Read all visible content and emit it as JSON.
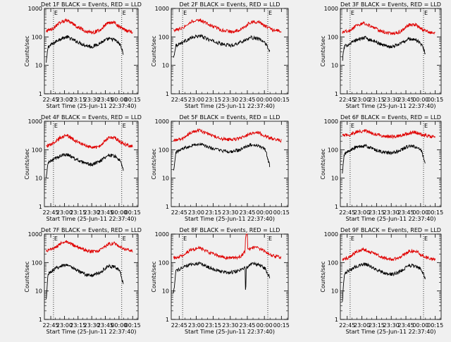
{
  "colors": {
    "background": "#f0f0f0",
    "events": "#000000",
    "lld": "#e00000",
    "axes": "#000000"
  },
  "chart_data": [
    {
      "type": "line",
      "title": "Det 1F BLACK = Events, RED = LLD",
      "xlabel": "Start Time (25-Jun-11 22:37:40)",
      "ylabel": "Counts/sec",
      "yscale": "log",
      "ylim": [
        1,
        1000
      ],
      "xlim": [
        -5,
        98
      ],
      "xunit": "minutes after 22:43",
      "xticks": [
        "22:45",
        "23:00",
        "23:15",
        "23:30",
        "23:45",
        "00:00",
        "00:15"
      ],
      "yticks": [
        "1",
        "10",
        "100",
        "1000"
      ],
      "markers": [
        {
          "x": 5,
          "label": "E"
        },
        {
          "x": 80,
          "label": "E"
        }
      ],
      "series": [
        {
          "name": "Events",
          "x": [
            -3,
            -1,
            5,
            12,
            20,
            30,
            40,
            48,
            56,
            65,
            72,
            78,
            82
          ],
          "y": [
            12,
            45,
            60,
            85,
            100,
            70,
            50,
            45,
            60,
            85,
            80,
            55,
            25
          ]
        },
        {
          "name": "LLD",
          "x": [
            -3,
            5,
            12,
            20,
            30,
            40,
            48,
            56,
            65,
            72,
            78,
            85,
            92
          ],
          "y": [
            160,
            200,
            330,
            380,
            240,
            160,
            140,
            170,
            320,
            320,
            220,
            165,
            150
          ]
        }
      ]
    },
    {
      "type": "line",
      "title": "Det 2F BLACK = Events, RED = LLD",
      "xlabel": "Start Time (25-Jun-11 22:37:40)",
      "ylabel": "Counts/sec",
      "yscale": "log",
      "ylim": [
        1,
        1000
      ],
      "xlim": [
        -5,
        98
      ],
      "xunit": "minutes after 22:43",
      "xticks": [
        "22:45",
        "23:00",
        "23:15",
        "23:30",
        "23:45",
        "00:00",
        "00:15"
      ],
      "yticks": [
        "1",
        "10",
        "100",
        "1000"
      ],
      "markers": [
        {
          "x": 5,
          "label": "E"
        },
        {
          "x": 80,
          "label": "E"
        }
      ],
      "series": [
        {
          "name": "Events",
          "x": [
            -3,
            -1,
            5,
            12,
            20,
            30,
            40,
            48,
            56,
            65,
            72,
            78,
            82
          ],
          "y": [
            18,
            50,
            65,
            90,
            110,
            75,
            55,
            50,
            65,
            95,
            85,
            60,
            30
          ]
        },
        {
          "name": "LLD",
          "x": [
            -3,
            5,
            12,
            20,
            30,
            40,
            48,
            56,
            65,
            72,
            78,
            85,
            92
          ],
          "y": [
            170,
            210,
            340,
            400,
            250,
            170,
            150,
            180,
            330,
            340,
            230,
            175,
            160
          ]
        }
      ]
    },
    {
      "type": "line",
      "title": "Det 3F BLACK = Events, RED = LLD",
      "xlabel": "Start Time (25-Jun-11 22:37:40)",
      "ylabel": "Counts/sec",
      "yscale": "log",
      "ylim": [
        1,
        1000
      ],
      "xlim": [
        -5,
        98
      ],
      "xunit": "minutes after 22:43",
      "xticks": [
        "22:45",
        "23:00",
        "23:15",
        "23:30",
        "23:45",
        "00:00",
        "00:15"
      ],
      "yticks": [
        "1",
        "10",
        "100",
        "1000"
      ],
      "markers": [
        {
          "x": 5,
          "label": "E"
        },
        {
          "x": 80,
          "label": "E"
        }
      ],
      "series": [
        {
          "name": "Events",
          "x": [
            -3,
            -1,
            5,
            12,
            20,
            30,
            40,
            48,
            56,
            65,
            72,
            78,
            82
          ],
          "y": [
            14,
            45,
            60,
            80,
            95,
            68,
            50,
            45,
            58,
            85,
            80,
            55,
            25
          ]
        },
        {
          "name": "LLD",
          "x": [
            -3,
            5,
            12,
            20,
            30,
            40,
            48,
            56,
            65,
            72,
            78,
            85,
            92
          ],
          "y": [
            140,
            170,
            260,
            300,
            200,
            145,
            130,
            150,
            260,
            270,
            190,
            150,
            140
          ]
        }
      ]
    },
    {
      "type": "line",
      "title": "Det 4F BLACK = Events, RED = LLD",
      "xlabel": "Start Time (25-Jun-11 22:37:40)",
      "ylabel": "Counts/sec",
      "yscale": "log",
      "ylim": [
        1,
        1000
      ],
      "xlim": [
        -5,
        98
      ],
      "xunit": "minutes after 22:43",
      "xticks": [
        "22:45",
        "23:00",
        "23:15",
        "23:30",
        "23:45",
        "00:00",
        "00:15"
      ],
      "yticks": [
        "1",
        "10",
        "100",
        "1000"
      ],
      "markers": [
        {
          "x": 5,
          "label": "E"
        },
        {
          "x": 80,
          "label": "E"
        }
      ],
      "series": [
        {
          "name": "Events",
          "x": [
            -3,
            -1,
            5,
            12,
            20,
            30,
            40,
            48,
            56,
            65,
            72,
            78,
            82
          ],
          "y": [
            10,
            35,
            45,
            60,
            70,
            45,
            32,
            30,
            40,
            65,
            60,
            42,
            18
          ]
        },
        {
          "name": "LLD",
          "x": [
            -3,
            5,
            12,
            20,
            30,
            40,
            48,
            56,
            65,
            72,
            78,
            85,
            92
          ],
          "y": [
            130,
            170,
            260,
            320,
            200,
            140,
            115,
            135,
            260,
            280,
            190,
            145,
            130
          ]
        }
      ]
    },
    {
      "type": "line",
      "title": "Det 5F BLACK = Events, RED = LLD",
      "xlabel": "Start Time (25-Jun-11 22:37:40)",
      "ylabel": "Counts/sec",
      "yscale": "log",
      "ylim": [
        1,
        1000
      ],
      "xlim": [
        -5,
        98
      ],
      "xunit": "minutes after 22:43",
      "xticks": [
        "22:45",
        "23:00",
        "23:15",
        "23:30",
        "23:45",
        "00:00",
        "00:15"
      ],
      "yticks": [
        "1",
        "10",
        "100",
        "1000"
      ],
      "markers": [],
      "series": [
        {
          "name": "Events",
          "x": [
            -3,
            -1,
            5,
            12,
            20,
            30,
            40,
            48,
            56,
            65,
            72,
            78,
            82
          ],
          "y": [
            18,
            80,
            110,
            140,
            160,
            115,
            90,
            85,
            100,
            150,
            140,
            100,
            25
          ]
        },
        {
          "name": "LLD",
          "x": [
            -3,
            5,
            12,
            20,
            30,
            40,
            48,
            56,
            65,
            72,
            78,
            85,
            92
          ],
          "y": [
            210,
            250,
            400,
            480,
            320,
            240,
            225,
            250,
            380,
            400,
            300,
            240,
            210
          ]
        }
      ]
    },
    {
      "type": "line",
      "title": "Det 6F BLACK = Events, RED = LLD",
      "xlabel": "Start Time (25-Jun-11 22:37:40)",
      "ylabel": "Counts/sec",
      "yscale": "log",
      "ylim": [
        1,
        1000
      ],
      "xlim": [
        -5,
        98
      ],
      "xunit": "minutes after 22:43",
      "xticks": [
        "22:45",
        "23:00",
        "23:15",
        "23:30",
        "23:45",
        "00:00",
        "00:15"
      ],
      "yticks": [
        "1",
        "10",
        "100",
        "1000"
      ],
      "markers": [
        {
          "x": 5,
          "label": "E"
        },
        {
          "x": 80,
          "label": "E"
        }
      ],
      "series": [
        {
          "name": "Events",
          "x": [
            -3,
            -1,
            5,
            12,
            20,
            30,
            40,
            48,
            56,
            65,
            72,
            78,
            82
          ],
          "y": [
            14,
            70,
            95,
            125,
            140,
            100,
            80,
            75,
            95,
            135,
            125,
            90,
            28
          ]
        },
        {
          "name": "LLD",
          "x": [
            -3,
            5,
            12,
            20,
            30,
            40,
            48,
            56,
            65,
            72,
            78,
            85,
            92
          ],
          "y": [
            310,
            340,
            430,
            460,
            360,
            300,
            290,
            310,
            390,
            410,
            340,
            300,
            290
          ]
        }
      ]
    },
    {
      "type": "line",
      "title": "Det 7F BLACK = Events, RED = LLD",
      "xlabel": "Start Time (25-Jun-11 22:37:40)",
      "ylabel": "Counts/sec",
      "yscale": "log",
      "ylim": [
        1,
        1000
      ],
      "xlim": [
        -5,
        98
      ],
      "xunit": "minutes after 22:43",
      "xticks": [
        "22:45",
        "23:00",
        "23:15",
        "23:30",
        "23:45",
        "00:00",
        "00:15"
      ],
      "yticks": [
        "1",
        "10",
        "100",
        "1000"
      ],
      "markers": [
        {
          "x": 5,
          "label": "E"
        },
        {
          "x": 80,
          "label": "E"
        }
      ],
      "series": [
        {
          "name": "Events",
          "x": [
            -3,
            -1,
            5,
            12,
            20,
            30,
            40,
            48,
            56,
            65,
            72,
            78,
            82
          ],
          "y": [
            5,
            40,
            55,
            75,
            85,
            55,
            38,
            35,
            45,
            75,
            70,
            50,
            16
          ]
        },
        {
          "name": "LLD",
          "x": [
            -3,
            5,
            12,
            20,
            30,
            40,
            48,
            56,
            65,
            72,
            78,
            85,
            92
          ],
          "y": [
            260,
            300,
            450,
            540,
            360,
            270,
            240,
            270,
            430,
            470,
            350,
            280,
            250
          ]
        }
      ]
    },
    {
      "type": "line",
      "title": "Det 8F BLACK = Events, RED = LLD",
      "xlabel": "Start Time (25-Jun-11 22:37:40)",
      "ylabel": "Counts/sec",
      "yscale": "log",
      "ylim": [
        1,
        1000
      ],
      "xlim": [
        -5,
        98
      ],
      "xunit": "minutes after 22:43",
      "xticks": [
        "22:45",
        "23:00",
        "23:15",
        "23:30",
        "23:45",
        "00:00",
        "00:15"
      ],
      "yticks": [
        "1",
        "10",
        "100",
        "1000"
      ],
      "markers": [
        {
          "x": 5,
          "label": "E"
        },
        {
          "x": 80,
          "label": "E"
        }
      ],
      "series": [
        {
          "name": "Events",
          "x": [
            -3,
            -1,
            5,
            12,
            20,
            30,
            40,
            48,
            56,
            60,
            60.5,
            61,
            65,
            72,
            78,
            82
          ],
          "y": [
            8,
            50,
            65,
            85,
            95,
            62,
            48,
            45,
            55,
            70,
            5,
            60,
            90,
            85,
            60,
            28
          ]
        },
        {
          "name": "LLD",
          "x": [
            -3,
            5,
            12,
            20,
            30,
            40,
            48,
            56,
            60,
            60.5,
            62,
            62.5,
            65,
            72,
            78,
            85,
            92
          ],
          "y": [
            140,
            180,
            280,
            320,
            210,
            155,
            140,
            165,
            240,
            1000,
            1000,
            260,
            330,
            330,
            230,
            170,
            150
          ]
        }
      ]
    },
    {
      "type": "line",
      "title": "Det 9F BLACK = Events, RED = LLD",
      "xlabel": "Start Time (25-Jun-11 22:37:40)",
      "ylabel": "Counts/sec",
      "yscale": "log",
      "ylim": [
        1,
        1000
      ],
      "xlim": [
        -5,
        98
      ],
      "xunit": "minutes after 22:43",
      "xticks": [
        "22:45",
        "23:00",
        "23:15",
        "23:30",
        "23:45",
        "00:00",
        "00:15"
      ],
      "yticks": [
        "1",
        "10",
        "100",
        "1000"
      ],
      "markers": [
        {
          "x": 5,
          "label": "E"
        },
        {
          "x": 80,
          "label": "E"
        }
      ],
      "series": [
        {
          "name": "Events",
          "x": [
            -3,
            -1,
            5,
            12,
            20,
            30,
            40,
            48,
            56,
            65,
            72,
            78,
            82
          ],
          "y": [
            4,
            40,
            55,
            75,
            90,
            60,
            42,
            38,
            48,
            80,
            75,
            55,
            28
          ]
        },
        {
          "name": "LLD",
          "x": [
            -3,
            5,
            12,
            20,
            30,
            40,
            48,
            56,
            65,
            72,
            78,
            85,
            92
          ],
          "y": [
            120,
            160,
            250,
            290,
            200,
            145,
            130,
            150,
            250,
            260,
            185,
            140,
            125
          ]
        }
      ]
    }
  ]
}
